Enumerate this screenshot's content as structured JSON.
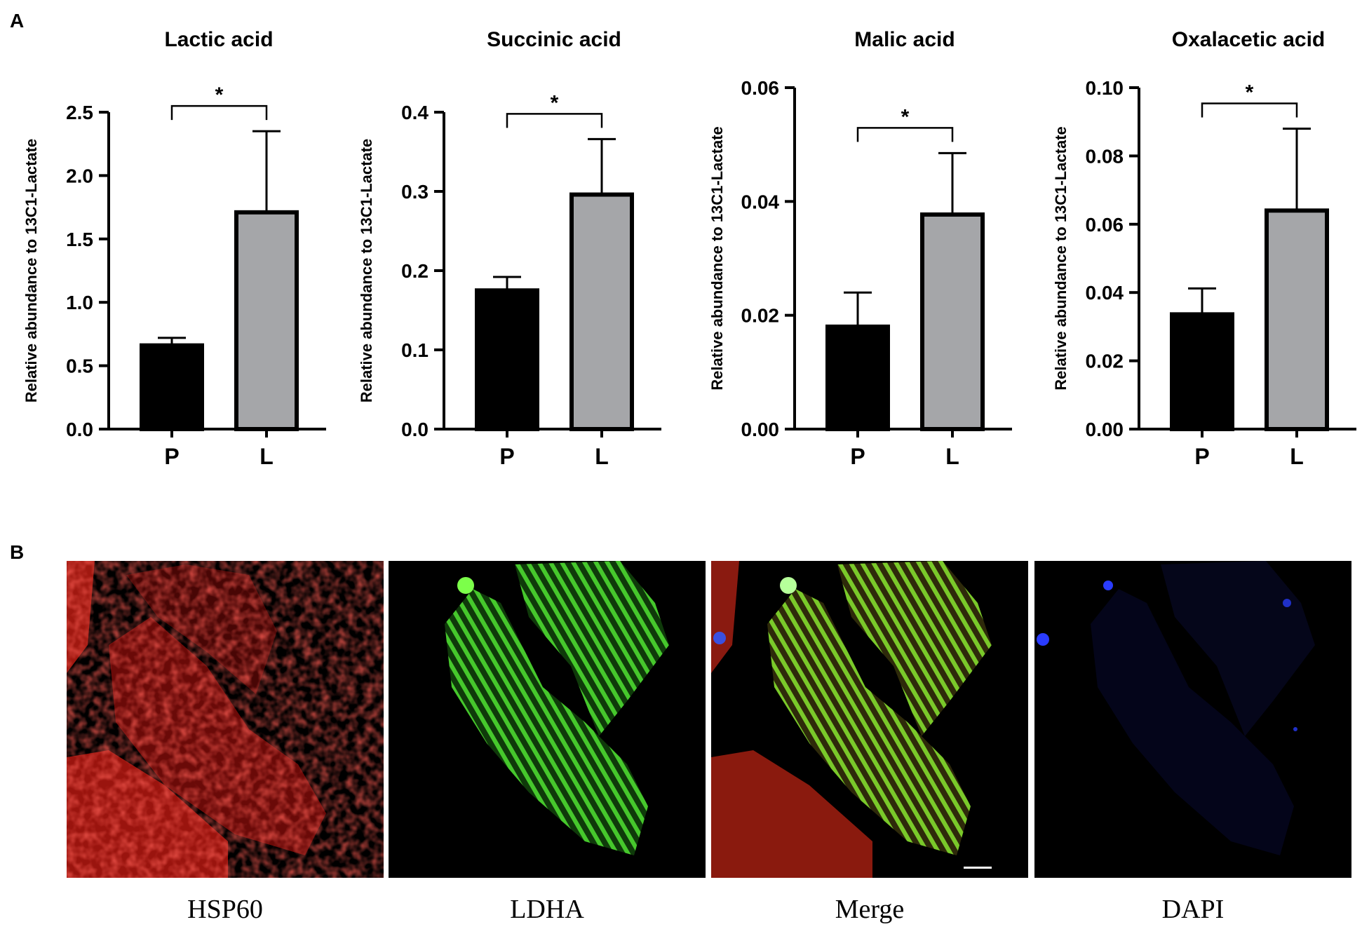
{
  "panel_labels": {
    "a": "A",
    "b": "B"
  },
  "chart_data": [
    {
      "type": "bar",
      "title": "Lactic acid",
      "ylabel": "Relative abundance to 13C1-Lactate",
      "categories": [
        "P",
        "L"
      ],
      "values": [
        0.66,
        1.71
      ],
      "errors": [
        0.06,
        0.64
      ],
      "ylim": [
        0,
        2.5
      ],
      "yticks": [
        0.0,
        0.5,
        1.0,
        1.5,
        2.0,
        2.5
      ],
      "yticklabels": [
        "0.0",
        "0.5",
        "1.0",
        "1.5",
        "2.0",
        "2.5"
      ],
      "bar_colors": [
        "#000000",
        "#a5a6a9"
      ],
      "significance": "*",
      "grid": false
    },
    {
      "type": "bar",
      "title": "Succinic acid",
      "ylabel": "Relative abundance to 13C1-Lactate",
      "categories": [
        "P",
        "L"
      ],
      "values": [
        0.175,
        0.296
      ],
      "errors": [
        0.017,
        0.07
      ],
      "ylim": [
        0,
        0.4
      ],
      "yticks": [
        0.0,
        0.1,
        0.2,
        0.3,
        0.4
      ],
      "yticklabels": [
        "0.0",
        "0.1",
        "0.2",
        "0.3",
        "0.4"
      ],
      "bar_colors": [
        "#000000",
        "#a5a6a9"
      ],
      "significance": "*",
      "grid": false
    },
    {
      "type": "bar",
      "title": "Malic acid",
      "ylabel": "Relative abundance to 13C1-Lactate",
      "categories": [
        "P",
        "L"
      ],
      "values": [
        0.018,
        0.0377
      ],
      "errors": [
        0.006,
        0.0108
      ],
      "ylim": [
        0,
        0.06
      ],
      "yticks": [
        0.0,
        0.02,
        0.04,
        0.06
      ],
      "yticklabels": [
        "0.00",
        "0.02",
        "0.04",
        "0.06"
      ],
      "bar_colors": [
        "#000000",
        "#a5a6a9"
      ],
      "significance": "*",
      "grid": false
    },
    {
      "type": "bar",
      "title": "Oxalacetic acid",
      "ylabel": "Relative abundance to 13C1-Lactate",
      "categories": [
        "P",
        "L"
      ],
      "values": [
        0.0336,
        0.064
      ],
      "errors": [
        0.0076,
        0.024
      ],
      "ylim": [
        0,
        0.1
      ],
      "yticks": [
        0.0,
        0.02,
        0.04,
        0.06,
        0.08,
        0.1
      ],
      "yticklabels": [
        "0.00",
        "0.02",
        "0.04",
        "0.06",
        "0.08",
        "0.10"
      ],
      "bar_colors": [
        "#000000",
        "#a5a6a9"
      ],
      "significance": "*",
      "grid": false
    }
  ],
  "micrographs": [
    {
      "caption": "HSP60",
      "channel_color": "#e8241c"
    },
    {
      "caption": "LDHA",
      "channel_color": "#3ec42a"
    },
    {
      "caption": "Merge",
      "channel_color": "#8fc62a"
    },
    {
      "caption": "DAPI",
      "channel_color": "#1a2aa0"
    }
  ]
}
